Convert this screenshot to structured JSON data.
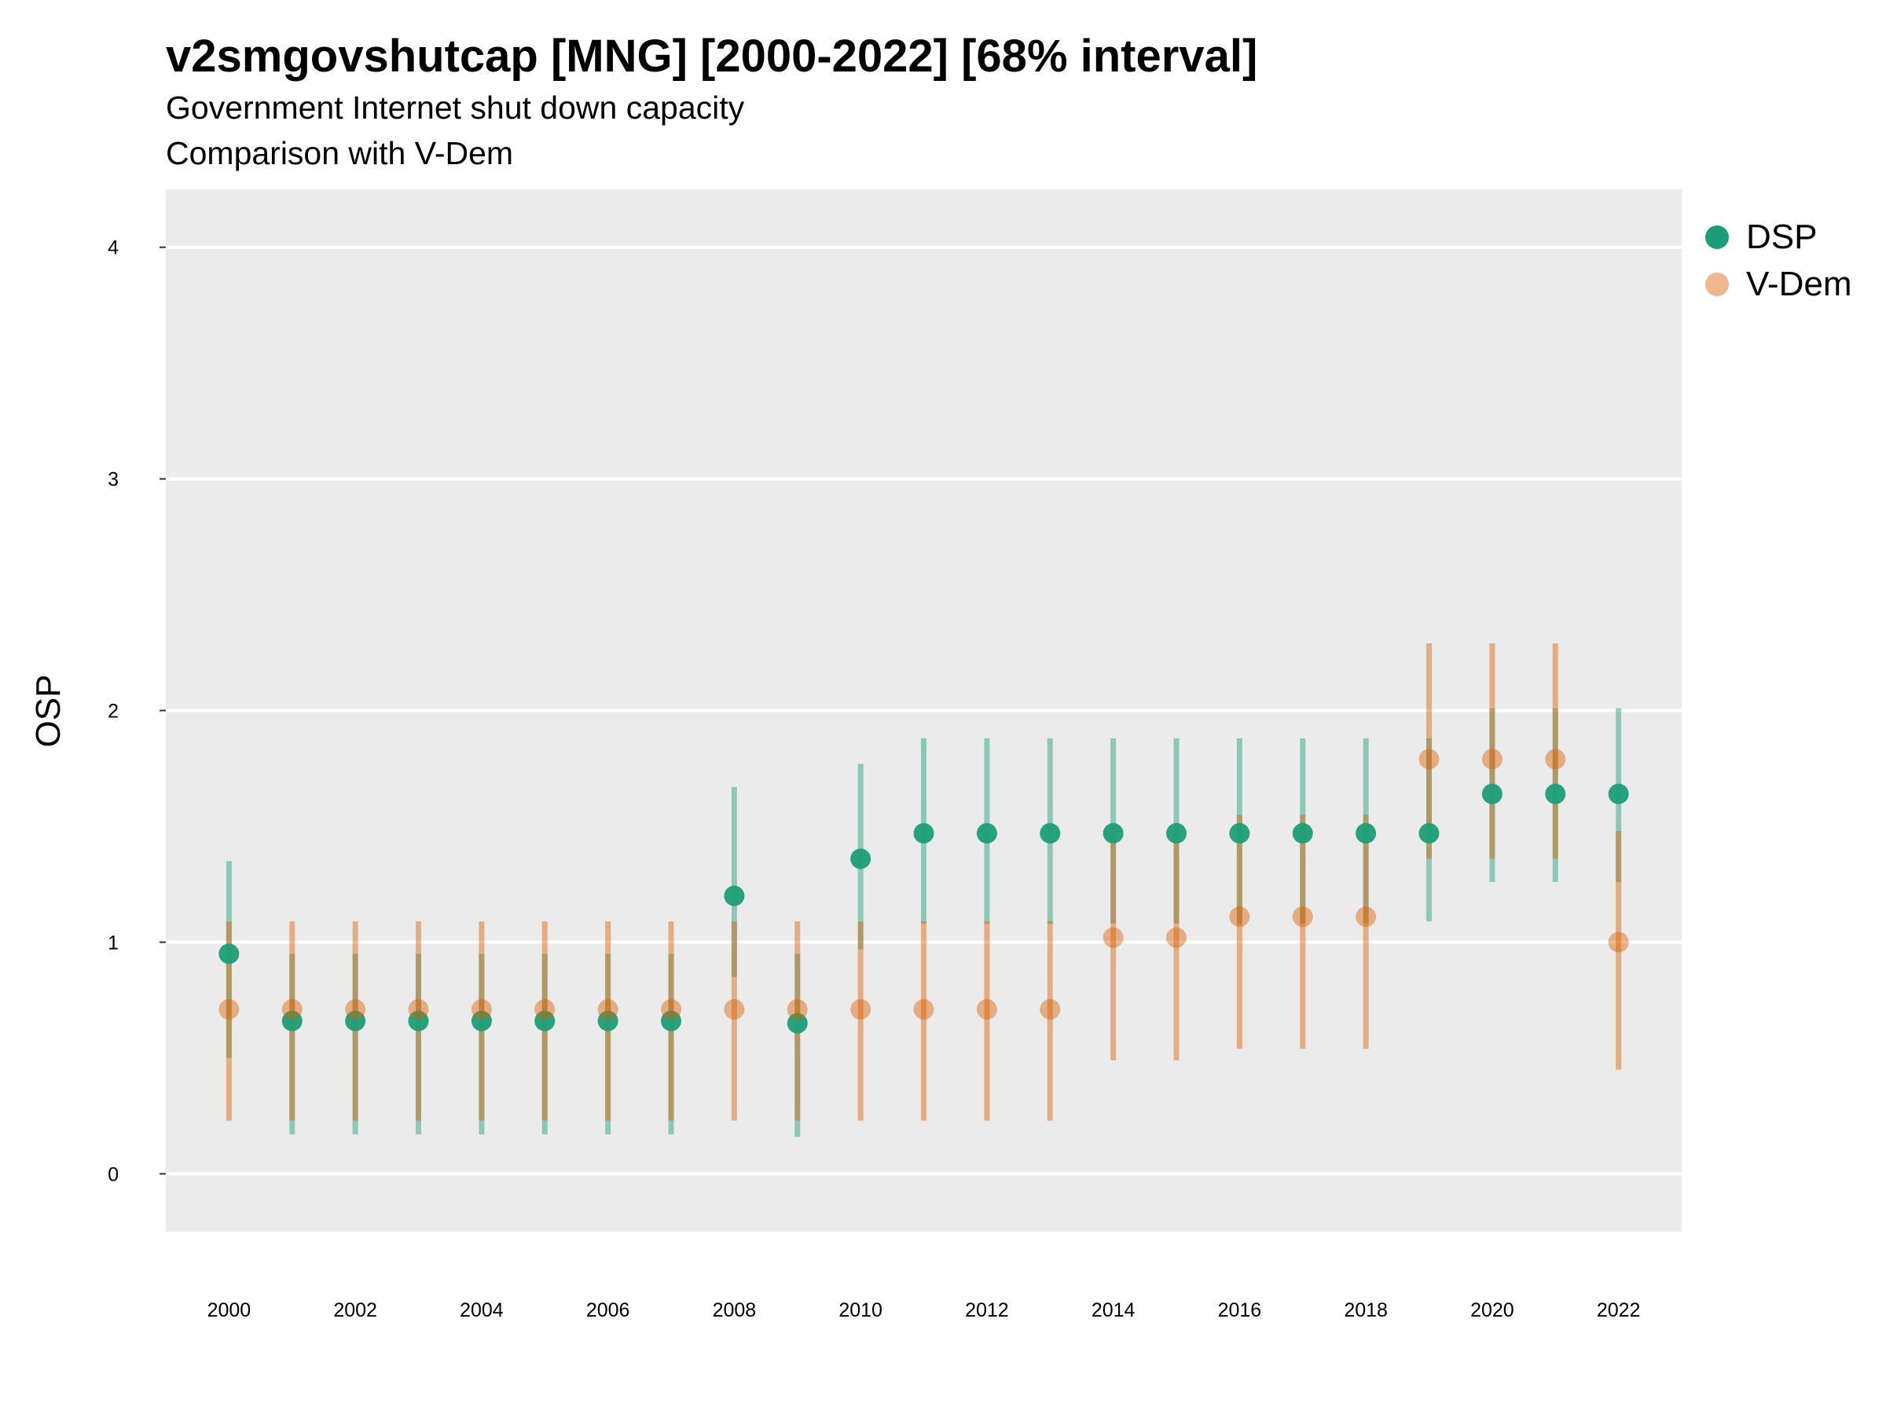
{
  "chart_data": {
    "type": "scatter",
    "title": "v2smgovshutcap [MNG] [2000-2022] [68% interval]",
    "subtitle": "Government Internet shut down capacity",
    "subtitle2": "Comparison with V-Dem",
    "xlabel": "",
    "ylabel": "OSP",
    "xlim": [
      1999.0,
      2023.0
    ],
    "ylim": [
      -0.25,
      4.25
    ],
    "x_ticks": [
      2000,
      2002,
      2004,
      2006,
      2008,
      2010,
      2012,
      2014,
      2016,
      2018,
      2020,
      2022
    ],
    "y_ticks": [
      0,
      1,
      2,
      3,
      4
    ],
    "grid": true,
    "legend_position": "right",
    "x": [
      2000,
      2001,
      2002,
      2003,
      2004,
      2005,
      2006,
      2007,
      2008,
      2009,
      2010,
      2011,
      2012,
      2013,
      2014,
      2015,
      2016,
      2017,
      2018,
      2019,
      2020,
      2021,
      2022
    ],
    "series": [
      {
        "name": "DSP",
        "color": "#1B9E77",
        "values": [
          0.95,
          0.66,
          0.66,
          0.66,
          0.66,
          0.66,
          0.66,
          0.66,
          1.2,
          0.65,
          1.36,
          1.47,
          1.47,
          1.47,
          1.47,
          1.47,
          1.47,
          1.47,
          1.47,
          1.47,
          1.64,
          1.64,
          1.64
        ],
        "lower": [
          0.5,
          0.17,
          0.17,
          0.17,
          0.17,
          0.17,
          0.17,
          0.17,
          0.85,
          0.16,
          0.97,
          1.08,
          1.08,
          1.08,
          1.08,
          1.08,
          1.08,
          1.08,
          1.08,
          1.09,
          1.26,
          1.26,
          1.26
        ],
        "upper": [
          1.35,
          0.95,
          0.95,
          0.95,
          0.95,
          0.95,
          0.95,
          0.95,
          1.67,
          0.95,
          1.77,
          1.88,
          1.88,
          1.88,
          1.88,
          1.88,
          1.88,
          1.88,
          1.88,
          1.88,
          2.01,
          2.01,
          2.01
        ]
      },
      {
        "name": "V-Dem",
        "color": "#D95F02",
        "values": [
          0.71,
          0.71,
          0.71,
          0.71,
          0.71,
          0.71,
          0.71,
          0.71,
          0.71,
          0.71,
          0.71,
          0.71,
          0.71,
          0.71,
          1.02,
          1.02,
          1.11,
          1.11,
          1.11,
          1.79,
          1.79,
          1.79,
          1.0
        ],
        "lower": [
          0.23,
          0.23,
          0.23,
          0.23,
          0.23,
          0.23,
          0.23,
          0.23,
          0.23,
          0.23,
          0.23,
          0.23,
          0.23,
          0.23,
          0.49,
          0.49,
          0.54,
          0.54,
          0.54,
          1.36,
          1.36,
          1.36,
          0.45
        ],
        "upper": [
          1.09,
          1.09,
          1.09,
          1.09,
          1.09,
          1.09,
          1.09,
          1.09,
          1.09,
          1.09,
          1.09,
          1.09,
          1.09,
          1.09,
          1.48,
          1.48,
          1.55,
          1.55,
          1.55,
          2.29,
          2.29,
          2.29,
          1.48
        ]
      }
    ]
  }
}
